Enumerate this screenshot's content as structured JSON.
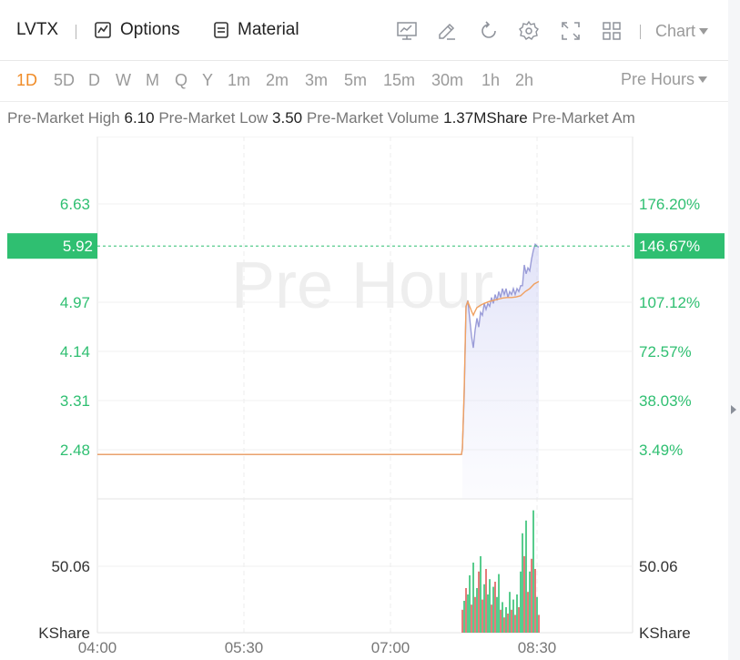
{
  "header": {
    "ticker": "LVTX",
    "options_label": "Options",
    "material_label": "Material",
    "chart_label": "Chart",
    "tools": [
      "indicator-icon",
      "draw-icon",
      "reset-icon",
      "settings-icon",
      "fullscreen-icon",
      "layout-icon"
    ]
  },
  "intervals": {
    "items": [
      "1D",
      "5D",
      "D",
      "W",
      "M",
      "Q",
      "Y",
      "1m",
      "2m",
      "3m",
      "5m",
      "15m",
      "30m",
      "1h",
      "2h"
    ],
    "active": "1D",
    "session_label": "Pre Hours"
  },
  "stats": [
    {
      "label": "Pre-Market High",
      "value": "6.10"
    },
    {
      "label": "Pre-Market Low",
      "value": "3.50"
    },
    {
      "label": "Pre-Market Volume",
      "value": "1.37MShare"
    },
    {
      "label": "Pre-Market Am",
      "value": ""
    }
  ],
  "chart_data": {
    "type": "line",
    "watermark": "Pre Hour",
    "x_ticks": [
      "04:00",
      "05:30",
      "07:00",
      "08:30"
    ],
    "price_axis": {
      "left_ticks": [
        "6.63",
        "4.97",
        "4.14",
        "3.31",
        "2.48"
      ],
      "right_ticks": [
        "176.20%",
        "107.12%",
        "72.57%",
        "38.03%",
        "3.49%"
      ],
      "tick_values": [
        6.63,
        4.97,
        4.14,
        3.31,
        2.48
      ],
      "current_price": "5.92",
      "current_pct": "146.67%",
      "current_value": 5.92
    },
    "volume_axis": {
      "tick_label": "50.06",
      "unit": "KShare"
    },
    "series": [
      {
        "key": "price",
        "color": "#9a9cd8",
        "points": [
          [
            0,
            2.4
          ],
          [
            370,
            2.4
          ],
          [
            400,
            2.4
          ],
          [
            401,
            2.5
          ],
          [
            403,
            3.4
          ],
          [
            405,
            4.9
          ],
          [
            407,
            5.0
          ],
          [
            409,
            4.7
          ],
          [
            411,
            4.4
          ],
          [
            413,
            4.2
          ],
          [
            415,
            4.5
          ],
          [
            417,
            4.7
          ],
          [
            419,
            4.55
          ],
          [
            421,
            4.8
          ],
          [
            423,
            4.75
          ],
          [
            425,
            4.95
          ],
          [
            427,
            4.85
          ],
          [
            429,
            4.95
          ],
          [
            431,
            4.9
          ],
          [
            433,
            5.05
          ],
          [
            435,
            4.95
          ],
          [
            437,
            5.1
          ],
          [
            439,
            5.0
          ],
          [
            441,
            5.15
          ],
          [
            443,
            5.05
          ],
          [
            445,
            5.2
          ],
          [
            447,
            5.1
          ],
          [
            449,
            5.2
          ],
          [
            451,
            5.05
          ],
          [
            453,
            5.15
          ],
          [
            455,
            5.1
          ],
          [
            457,
            5.2
          ],
          [
            459,
            5.1
          ],
          [
            461,
            5.2
          ],
          [
            463,
            5.15
          ],
          [
            465,
            5.25
          ],
          [
            467,
            5.25
          ],
          [
            469,
            5.6
          ],
          [
            471,
            5.45
          ],
          [
            473,
            5.55
          ],
          [
            475,
            5.5
          ],
          [
            477,
            5.7
          ],
          [
            479,
            5.85
          ],
          [
            481,
            5.95
          ],
          [
            483,
            5.92
          ],
          [
            485,
            5.9
          ]
        ]
      },
      {
        "key": "average",
        "color": "#f0a060",
        "points": [
          [
            0,
            2.4
          ],
          [
            370,
            2.4
          ],
          [
            400,
            2.4
          ],
          [
            401,
            2.5
          ],
          [
            403,
            3.5
          ],
          [
            405,
            4.9
          ],
          [
            407,
            4.98
          ],
          [
            409,
            4.9
          ],
          [
            411,
            4.82
          ],
          [
            413,
            4.75
          ],
          [
            415,
            4.82
          ],
          [
            417,
            4.88
          ],
          [
            419,
            4.9
          ],
          [
            421,
            4.92
          ],
          [
            425,
            4.95
          ],
          [
            430,
            4.98
          ],
          [
            435,
            5.0
          ],
          [
            440,
            5.02
          ],
          [
            445,
            5.04
          ],
          [
            450,
            5.05
          ],
          [
            455,
            5.05
          ],
          [
            460,
            5.06
          ],
          [
            465,
            5.08
          ],
          [
            470,
            5.15
          ],
          [
            475,
            5.2
          ],
          [
            480,
            5.28
          ],
          [
            485,
            5.32
          ]
        ]
      }
    ],
    "volume": [
      [
        401,
        18,
        "red"
      ],
      [
        403,
        25,
        "green"
      ],
      [
        405,
        35,
        "red"
      ],
      [
        407,
        30,
        "green"
      ],
      [
        409,
        45,
        "green"
      ],
      [
        411,
        22,
        "red"
      ],
      [
        413,
        55,
        "green"
      ],
      [
        415,
        28,
        "red"
      ],
      [
        417,
        35,
        "green"
      ],
      [
        419,
        48,
        "red"
      ],
      [
        421,
        60,
        "green"
      ],
      [
        423,
        26,
        "red"
      ],
      [
        425,
        38,
        "green"
      ],
      [
        427,
        50,
        "red"
      ],
      [
        429,
        30,
        "green"
      ],
      [
        431,
        42,
        "green"
      ],
      [
        433,
        22,
        "red"
      ],
      [
        435,
        36,
        "green"
      ],
      [
        437,
        40,
        "red"
      ],
      [
        439,
        28,
        "green"
      ],
      [
        441,
        46,
        "green"
      ],
      [
        443,
        18,
        "red"
      ],
      [
        445,
        24,
        "green"
      ],
      [
        447,
        12,
        "red"
      ],
      [
        449,
        20,
        "green"
      ],
      [
        451,
        15,
        "red"
      ],
      [
        453,
        32,
        "green"
      ],
      [
        455,
        18,
        "red"
      ],
      [
        457,
        26,
        "green"
      ],
      [
        459,
        14,
        "red"
      ],
      [
        461,
        30,
        "green"
      ],
      [
        463,
        20,
        "red"
      ],
      [
        465,
        48,
        "green"
      ],
      [
        467,
        78,
        "green"
      ],
      [
        469,
        60,
        "red"
      ],
      [
        471,
        88,
        "green"
      ],
      [
        473,
        32,
        "red"
      ],
      [
        475,
        48,
        "green"
      ],
      [
        477,
        58,
        "red"
      ],
      [
        479,
        96,
        "green"
      ],
      [
        481,
        50,
        "red"
      ],
      [
        483,
        28,
        "green"
      ],
      [
        485,
        14,
        "red"
      ]
    ],
    "colors": {
      "up": "#2fbf71",
      "down": "#e05a5a",
      "accent": "#f08c28",
      "axis_green": "#2fbf71"
    }
  }
}
